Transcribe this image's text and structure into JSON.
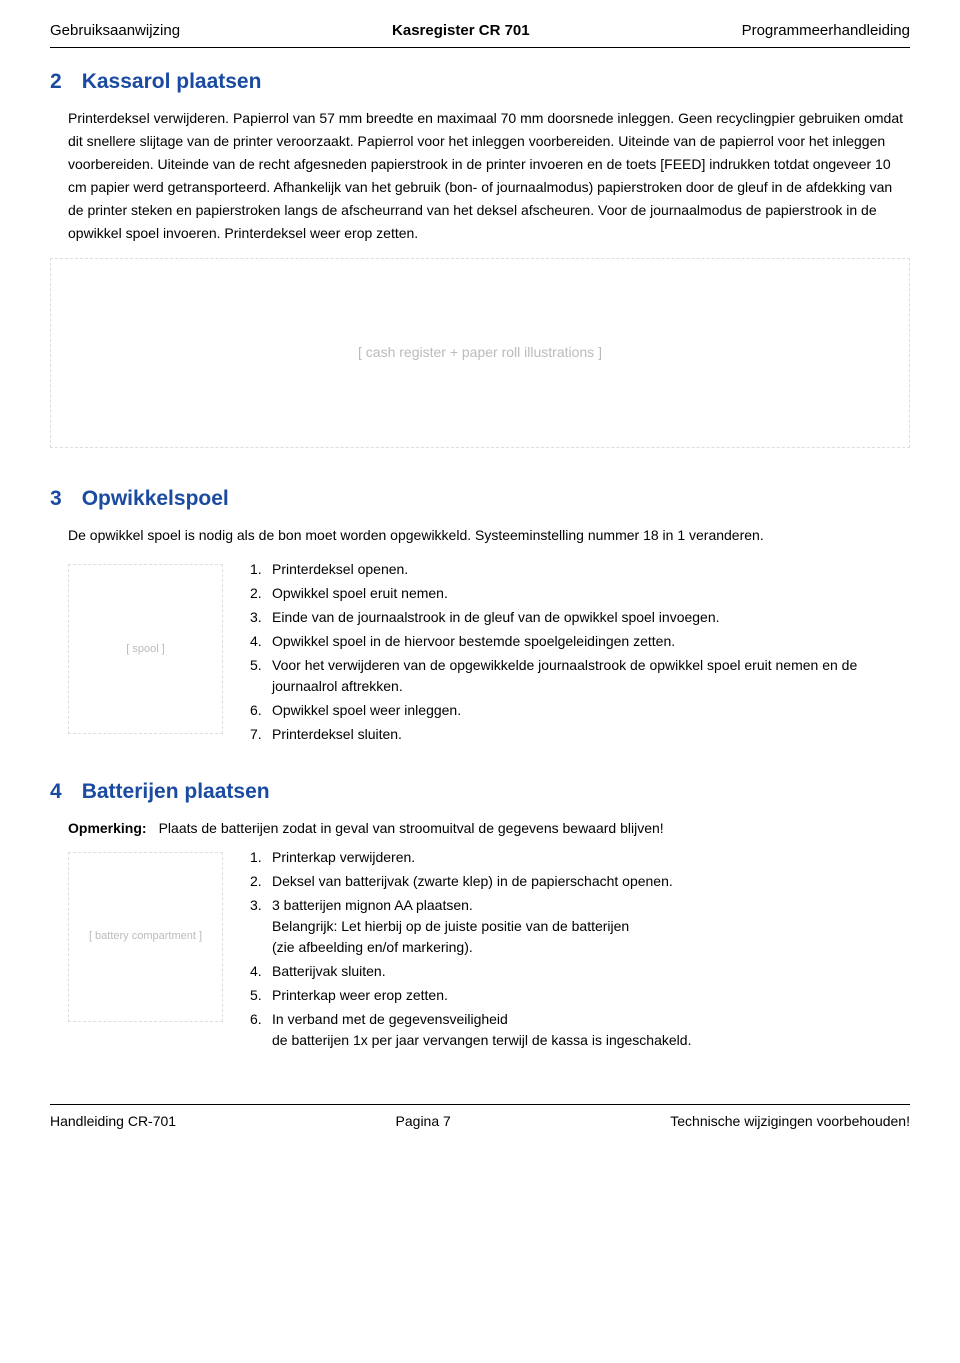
{
  "header": {
    "left": "Gebruiksaanwijzing",
    "center": "Kasregister CR 701",
    "right": "Programmeerhandleiding"
  },
  "section2": {
    "number": "2",
    "title": "Kassarol plaatsen",
    "paragraph": "Printerdeksel verwijderen. Papierrol van 57 mm breedte en maximaal 70 mm doorsnede inleggen. Geen recyclingpier gebruiken omdat dit snellere slijtage van de printer veroorzaakt. Papierrol voor het inleggen voorbereiden. Uiteinde van de papierrol voor het inleggen voorbereiden. Uiteinde van de recht afgesneden papierstrook in de printer invoeren en de toets [FEED] indrukken totdat ongeveer 10 cm papier werd getransporteerd. Afhankelijk van het gebruik (bon- of journaalmodus) papierstroken door de gleuf in de afdekking van de printer steken en papierstroken langs de afscheurrand van het deksel afscheuren. Voor de journaalmodus de papierstrook in de opwikkel spoel invoeren. Printerdeksel weer erop zetten.",
    "illustration_label": "[ cash register + paper roll illustrations ]"
  },
  "section3": {
    "number": "3",
    "title": "Opwikkelspoel",
    "intro": "De opwikkel spoel is nodig als de bon moet worden opgewikkeld. Systeeminstelling nummer 18 in 1 veranderen.",
    "illustration_label": "[ spool ]",
    "steps": [
      {
        "n": "1.",
        "t": "Printerdeksel openen."
      },
      {
        "n": "2.",
        "t": "Opwikkel spoel eruit nemen."
      },
      {
        "n": "3.",
        "t": "Einde van de journaalstrook in de gleuf van de opwikkel spoel invoegen."
      },
      {
        "n": "4.",
        "t": "Opwikkel spoel in de hiervoor bestemde spoelgeleidingen zetten."
      },
      {
        "n": "5.",
        "t": "Voor het verwijderen van de opgewikkelde journaalstrook de opwikkel spoel eruit nemen en de journaalrol aftrekken."
      },
      {
        "n": "6.",
        "t": "Opwikkel spoel weer inleggen."
      },
      {
        "n": "7.",
        "t": "Printerdeksel sluiten."
      }
    ]
  },
  "section4": {
    "number": "4",
    "title": "Batterijen plaatsen",
    "remark_label": "Opmerking:",
    "remark_text": "Plaats de batterijen zodat in geval van stroomuitval de gegevens bewaard blijven!",
    "illustration_label": "[ battery compartment ]",
    "steps": [
      {
        "n": "1.",
        "t": "Printerkap verwijderen."
      },
      {
        "n": "2.",
        "t": "Deksel van batterijvak (zwarte klep) in de papierschacht openen."
      },
      {
        "n": "3.",
        "t": "3 batterijen mignon AA plaatsen.\nBelangrijk: Let hierbij op de juiste positie van de batterijen\n(zie afbeelding en/of markering)."
      },
      {
        "n": "4.",
        "t": "Batterijvak sluiten."
      },
      {
        "n": "5.",
        "t": "Printerkap weer erop zetten."
      },
      {
        "n": "6.",
        "t": "In verband met de gegevensveiligheid\nde batterijen 1x per jaar vervangen terwijl de kassa is ingeschakeld."
      }
    ]
  },
  "footer": {
    "left": "Handleiding CR-701",
    "center": "Pagina 7",
    "right": "Technische wijzigingen voorbehouden!"
  }
}
